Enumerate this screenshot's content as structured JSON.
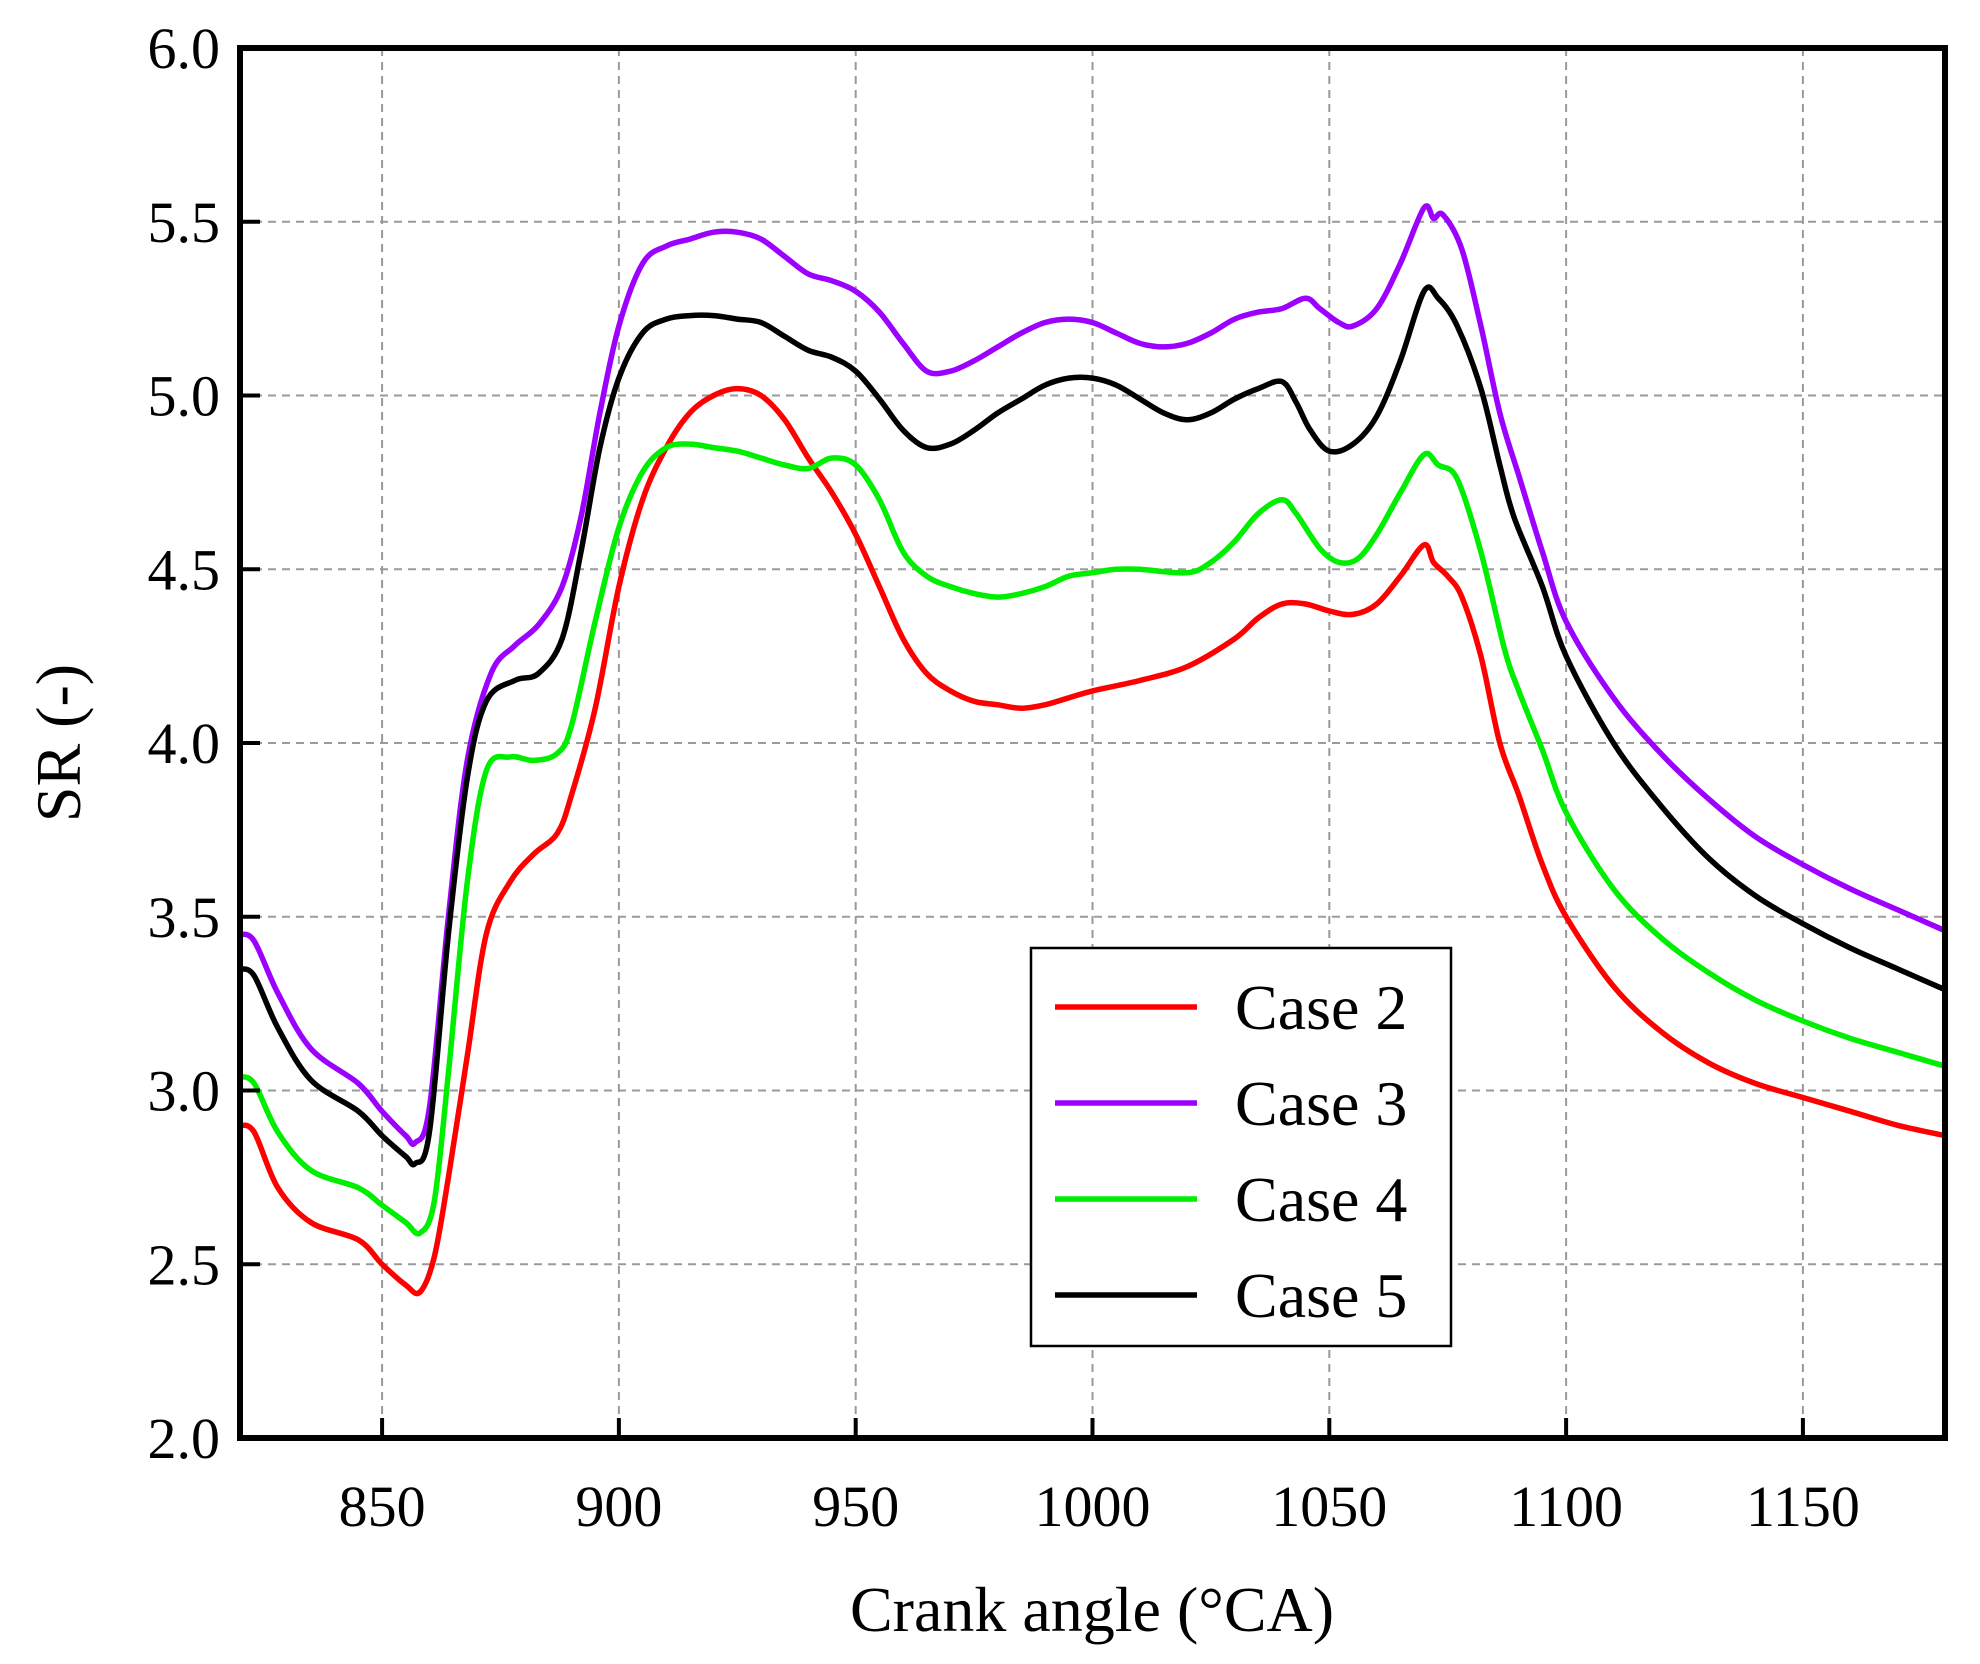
{
  "chart_data": {
    "type": "line",
    "title": "",
    "xlabel": "Crank angle (°CA)",
    "ylabel": "SR (-)",
    "xlim": [
      820,
      1180
    ],
    "ylim": [
      2.0,
      6.0
    ],
    "xticks": [
      850,
      900,
      950,
      1000,
      1050,
      1100,
      1150
    ],
    "yticks": [
      2.0,
      2.5,
      3.0,
      3.5,
      4.0,
      4.5,
      5.0,
      5.5,
      6.0
    ],
    "ytick_labels": [
      "2.0",
      "2.5",
      "3.0",
      "3.5",
      "4.0",
      "4.5",
      "5.0",
      "5.5",
      "6.0"
    ],
    "grid": true,
    "legend_position": "bottom-center",
    "series": [
      {
        "name": "Case 2",
        "color": "#ff0000",
        "points": [
          [
            820,
            2.9
          ],
          [
            823,
            2.88
          ],
          [
            828,
            2.72
          ],
          [
            835,
            2.62
          ],
          [
            845,
            2.57
          ],
          [
            850,
            2.5
          ],
          [
            855,
            2.44
          ],
          [
            858,
            2.42
          ],
          [
            861,
            2.52
          ],
          [
            864,
            2.75
          ],
          [
            868,
            3.1
          ],
          [
            872,
            3.45
          ],
          [
            877,
            3.6
          ],
          [
            882,
            3.68
          ],
          [
            887,
            3.74
          ],
          [
            890,
            3.85
          ],
          [
            895,
            4.1
          ],
          [
            900,
            4.45
          ],
          [
            905,
            4.7
          ],
          [
            910,
            4.85
          ],
          [
            915,
            4.95
          ],
          [
            920,
            5.0
          ],
          [
            925,
            5.02
          ],
          [
            930,
            5.0
          ],
          [
            935,
            4.93
          ],
          [
            940,
            4.82
          ],
          [
            945,
            4.72
          ],
          [
            950,
            4.6
          ],
          [
            955,
            4.45
          ],
          [
            960,
            4.3
          ],
          [
            965,
            4.2
          ],
          [
            970,
            4.15
          ],
          [
            975,
            4.12
          ],
          [
            980,
            4.11
          ],
          [
            985,
            4.1
          ],
          [
            990,
            4.11
          ],
          [
            995,
            4.13
          ],
          [
            1000,
            4.15
          ],
          [
            1010,
            4.18
          ],
          [
            1020,
            4.22
          ],
          [
            1030,
            4.3
          ],
          [
            1035,
            4.36
          ],
          [
            1040,
            4.4
          ],
          [
            1045,
            4.4
          ],
          [
            1050,
            4.38
          ],
          [
            1055,
            4.37
          ],
          [
            1060,
            4.4
          ],
          [
            1065,
            4.48
          ],
          [
            1070,
            4.57
          ],
          [
            1072,
            4.52
          ],
          [
            1075,
            4.48
          ],
          [
            1078,
            4.42
          ],
          [
            1082,
            4.25
          ],
          [
            1086,
            4.0
          ],
          [
            1090,
            3.85
          ],
          [
            1095,
            3.65
          ],
          [
            1100,
            3.5
          ],
          [
            1110,
            3.3
          ],
          [
            1120,
            3.17
          ],
          [
            1130,
            3.08
          ],
          [
            1140,
            3.02
          ],
          [
            1150,
            2.98
          ],
          [
            1160,
            2.94
          ],
          [
            1170,
            2.9
          ],
          [
            1180,
            2.87
          ]
        ]
      },
      {
        "name": "Case 3",
        "color": "#9c00ff",
        "points": [
          [
            820,
            3.45
          ],
          [
            823,
            3.43
          ],
          [
            828,
            3.28
          ],
          [
            835,
            3.12
          ],
          [
            845,
            3.02
          ],
          [
            850,
            2.94
          ],
          [
            855,
            2.87
          ],
          [
            857,
            2.85
          ],
          [
            860,
            2.95
          ],
          [
            864,
            3.5
          ],
          [
            868,
            3.95
          ],
          [
            873,
            4.2
          ],
          [
            878,
            4.28
          ],
          [
            883,
            4.34
          ],
          [
            888,
            4.45
          ],
          [
            892,
            4.65
          ],
          [
            896,
            4.95
          ],
          [
            900,
            5.2
          ],
          [
            905,
            5.38
          ],
          [
            910,
            5.43
          ],
          [
            915,
            5.45
          ],
          [
            920,
            5.47
          ],
          [
            925,
            5.47
          ],
          [
            930,
            5.45
          ],
          [
            935,
            5.4
          ],
          [
            940,
            5.35
          ],
          [
            945,
            5.33
          ],
          [
            950,
            5.3
          ],
          [
            955,
            5.24
          ],
          [
            960,
            5.15
          ],
          [
            965,
            5.07
          ],
          [
            970,
            5.07
          ],
          [
            975,
            5.1
          ],
          [
            980,
            5.14
          ],
          [
            985,
            5.18
          ],
          [
            990,
            5.21
          ],
          [
            995,
            5.22
          ],
          [
            1000,
            5.21
          ],
          [
            1005,
            5.18
          ],
          [
            1010,
            5.15
          ],
          [
            1015,
            5.14
          ],
          [
            1020,
            5.15
          ],
          [
            1025,
            5.18
          ],
          [
            1030,
            5.22
          ],
          [
            1035,
            5.24
          ],
          [
            1040,
            5.25
          ],
          [
            1045,
            5.28
          ],
          [
            1048,
            5.25
          ],
          [
            1052,
            5.21
          ],
          [
            1055,
            5.2
          ],
          [
            1060,
            5.25
          ],
          [
            1065,
            5.38
          ],
          [
            1070,
            5.54
          ],
          [
            1072,
            5.51
          ],
          [
            1074,
            5.52
          ],
          [
            1078,
            5.42
          ],
          [
            1082,
            5.2
          ],
          [
            1086,
            4.95
          ],
          [
            1090,
            4.77
          ],
          [
            1095,
            4.55
          ],
          [
            1100,
            4.35
          ],
          [
            1110,
            4.13
          ],
          [
            1120,
            3.97
          ],
          [
            1130,
            3.84
          ],
          [
            1140,
            3.73
          ],
          [
            1150,
            3.65
          ],
          [
            1160,
            3.58
          ],
          [
            1170,
            3.52
          ],
          [
            1180,
            3.46
          ]
        ]
      },
      {
        "name": "Case 4",
        "color": "#00ee00",
        "points": [
          [
            820,
            3.04
          ],
          [
            823,
            3.02
          ],
          [
            828,
            2.88
          ],
          [
            835,
            2.77
          ],
          [
            845,
            2.72
          ],
          [
            850,
            2.67
          ],
          [
            855,
            2.62
          ],
          [
            858,
            2.59
          ],
          [
            861,
            2.68
          ],
          [
            864,
            3.05
          ],
          [
            868,
            3.6
          ],
          [
            872,
            3.92
          ],
          [
            877,
            3.96
          ],
          [
            882,
            3.95
          ],
          [
            887,
            3.97
          ],
          [
            890,
            4.05
          ],
          [
            895,
            4.35
          ],
          [
            900,
            4.62
          ],
          [
            905,
            4.78
          ],
          [
            910,
            4.85
          ],
          [
            915,
            4.86
          ],
          [
            920,
            4.85
          ],
          [
            925,
            4.84
          ],
          [
            930,
            4.82
          ],
          [
            935,
            4.8
          ],
          [
            940,
            4.79
          ],
          [
            945,
            4.82
          ],
          [
            950,
            4.8
          ],
          [
            955,
            4.7
          ],
          [
            960,
            4.55
          ],
          [
            965,
            4.48
          ],
          [
            970,
            4.45
          ],
          [
            975,
            4.43
          ],
          [
            980,
            4.42
          ],
          [
            985,
            4.43
          ],
          [
            990,
            4.45
          ],
          [
            995,
            4.48
          ],
          [
            1000,
            4.49
          ],
          [
            1005,
            4.5
          ],
          [
            1010,
            4.5
          ],
          [
            1020,
            4.49
          ],
          [
            1025,
            4.52
          ],
          [
            1030,
            4.58
          ],
          [
            1035,
            4.66
          ],
          [
            1040,
            4.7
          ],
          [
            1043,
            4.66
          ],
          [
            1048,
            4.56
          ],
          [
            1052,
            4.52
          ],
          [
            1056,
            4.53
          ],
          [
            1060,
            4.6
          ],
          [
            1065,
            4.72
          ],
          [
            1070,
            4.83
          ],
          [
            1073,
            4.8
          ],
          [
            1077,
            4.76
          ],
          [
            1082,
            4.55
          ],
          [
            1087,
            4.27
          ],
          [
            1090,
            4.15
          ],
          [
            1095,
            3.98
          ],
          [
            1100,
            3.8
          ],
          [
            1110,
            3.58
          ],
          [
            1120,
            3.44
          ],
          [
            1130,
            3.34
          ],
          [
            1140,
            3.26
          ],
          [
            1150,
            3.2
          ],
          [
            1160,
            3.15
          ],
          [
            1170,
            3.11
          ],
          [
            1180,
            3.07
          ]
        ]
      },
      {
        "name": "Case 5",
        "color": "#000000",
        "points": [
          [
            820,
            3.35
          ],
          [
            823,
            3.33
          ],
          [
            828,
            3.18
          ],
          [
            835,
            3.03
          ],
          [
            845,
            2.94
          ],
          [
            850,
            2.87
          ],
          [
            855,
            2.81
          ],
          [
            857,
            2.79
          ],
          [
            860,
            2.88
          ],
          [
            864,
            3.45
          ],
          [
            868,
            3.9
          ],
          [
            872,
            4.12
          ],
          [
            878,
            4.18
          ],
          [
            883,
            4.2
          ],
          [
            888,
            4.3
          ],
          [
            892,
            4.55
          ],
          [
            896,
            4.85
          ],
          [
            900,
            5.05
          ],
          [
            905,
            5.18
          ],
          [
            910,
            5.22
          ],
          [
            915,
            5.23
          ],
          [
            920,
            5.23
          ],
          [
            925,
            5.22
          ],
          [
            930,
            5.21
          ],
          [
            935,
            5.17
          ],
          [
            940,
            5.13
          ],
          [
            945,
            5.11
          ],
          [
            950,
            5.07
          ],
          [
            955,
            4.99
          ],
          [
            960,
            4.9
          ],
          [
            965,
            4.85
          ],
          [
            970,
            4.86
          ],
          [
            975,
            4.9
          ],
          [
            980,
            4.95
          ],
          [
            985,
            4.99
          ],
          [
            990,
            5.03
          ],
          [
            995,
            5.05
          ],
          [
            1000,
            5.05
          ],
          [
            1005,
            5.03
          ],
          [
            1010,
            4.99
          ],
          [
            1015,
            4.95
          ],
          [
            1020,
            4.93
          ],
          [
            1025,
            4.95
          ],
          [
            1030,
            4.99
          ],
          [
            1035,
            5.02
          ],
          [
            1040,
            5.04
          ],
          [
            1043,
            4.98
          ],
          [
            1046,
            4.9
          ],
          [
            1050,
            4.84
          ],
          [
            1055,
            4.86
          ],
          [
            1060,
            4.94
          ],
          [
            1065,
            5.1
          ],
          [
            1070,
            5.3
          ],
          [
            1073,
            5.28
          ],
          [
            1077,
            5.2
          ],
          [
            1082,
            5.02
          ],
          [
            1086,
            4.8
          ],
          [
            1089,
            4.65
          ],
          [
            1095,
            4.45
          ],
          [
            1100,
            4.25
          ],
          [
            1110,
            4.0
          ],
          [
            1120,
            3.82
          ],
          [
            1130,
            3.67
          ],
          [
            1140,
            3.56
          ],
          [
            1150,
            3.48
          ],
          [
            1160,
            3.41
          ],
          [
            1170,
            3.35
          ],
          [
            1180,
            3.29
          ]
        ]
      }
    ]
  }
}
